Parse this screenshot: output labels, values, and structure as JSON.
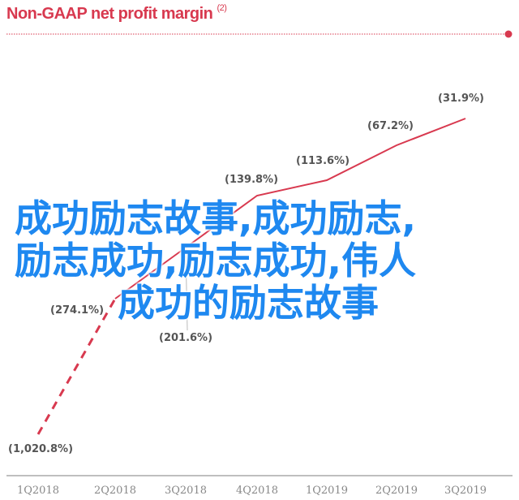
{
  "chart_data": {
    "type": "line",
    "title": "Non-GAAP net profit margin",
    "title_note": "(2)",
    "categories": [
      "1Q2018",
      "2Q2018",
      "3Q2018",
      "4Q2018",
      "1Q2019",
      "2Q2019",
      "3Q2019"
    ],
    "values": [
      -1020.8,
      -274.1,
      -201.6,
      -139.8,
      -113.6,
      -67.2,
      -31.9
    ],
    "labels": [
      "(1,020.8%)",
      "(274.1%)",
      "(201.6%)",
      "(139.8%)",
      "(113.6%)",
      "(67.2%)",
      "(31.9%)"
    ],
    "line_style": "dashed 1Q2018-2Q2018, solid afterwards",
    "y_axis": "not shown, non-linear",
    "grid": false,
    "color": "#d8394f"
  },
  "overlay": {
    "lines": [
      "成功励志故事,成功励志,",
      "励志成功,励志成功,伟人",
      "成功的励志故事"
    ],
    "color": "#1e88f0"
  }
}
